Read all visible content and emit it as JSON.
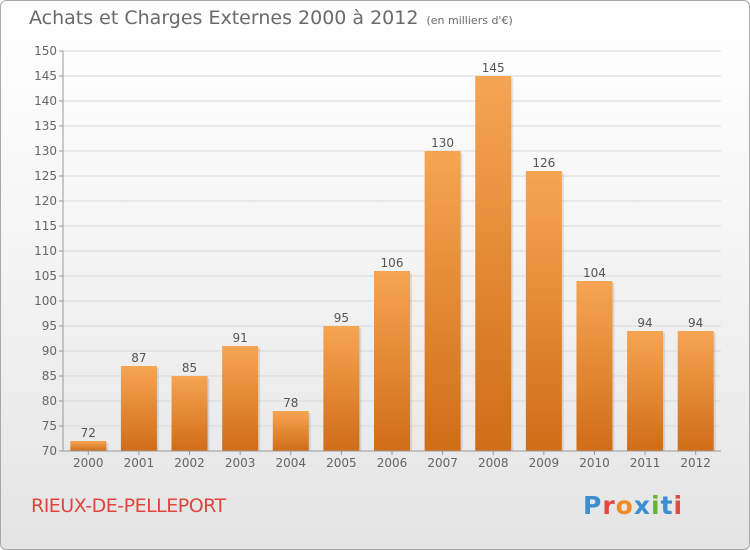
{
  "title": "Achats et Charges Externes 2000 à 2012",
  "unit": "(en milliers d'€)",
  "commune": "RIEUX-DE-PELLEPORT",
  "brand": {
    "name": "Proxiti",
    "letter_colors": [
      "#3a8fd0",
      "#e04a3f",
      "#f08a24",
      "#3a8fd0",
      "#6ab23e",
      "#3a8fd0",
      "#e04a3f"
    ]
  },
  "colors": {
    "bar_top": "#f6a553",
    "bar_bottom": "#d06d17",
    "grid": "#d9d9d9",
    "axis": "#999999",
    "text": "#666666"
  },
  "chart_data": {
    "type": "bar",
    "categories": [
      "2000",
      "2001",
      "2002",
      "2003",
      "2004",
      "2005",
      "2006",
      "2007",
      "2008",
      "2009",
      "2010",
      "2011",
      "2012"
    ],
    "values": [
      72,
      87,
      85,
      91,
      78,
      95,
      106,
      130,
      145,
      126,
      104,
      94,
      94
    ],
    "ylim": [
      70,
      150
    ],
    "yticks": [
      70,
      75,
      80,
      85,
      90,
      95,
      100,
      105,
      110,
      115,
      120,
      125,
      130,
      135,
      140,
      145,
      150
    ],
    "grid": true,
    "xlabel": "",
    "ylabel": ""
  }
}
